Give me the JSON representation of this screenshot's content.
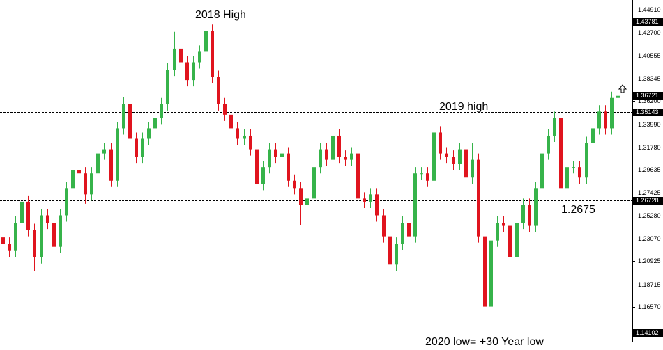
{
  "chart_data": {
    "type": "candlestick",
    "ylim": [
      1.1332,
      1.4584
    ],
    "yticks": [
      {
        "value": 1.4491,
        "label": "1.44910"
      },
      {
        "value": 1.427,
        "label": "1.42700"
      },
      1.40555,
      1.38345,
      {
        "value": 1.362,
        "label": "1.36200"
      },
      {
        "value": 1.3399,
        "label": "1.33990"
      },
      {
        "value": 1.3178,
        "label": "1.31780"
      },
      1.29635,
      1.27425,
      {
        "value": 1.2528,
        "label": "1.25280"
      },
      {
        "value": 1.2307,
        "label": "1.23070"
      },
      1.20925,
      1.18715,
      {
        "value": 1.1657,
        "label": "1.16570"
      }
    ],
    "levels": [
      1.43781,
      1.35143,
      1.26728,
      1.14102
    ],
    "last_price": 1.36721,
    "up_color": "#36b34a",
    "down_color": "#e0141e",
    "annotations": [
      "2018 High",
      "2019 high",
      "1.2675",
      "2020 low= +30 Year low"
    ],
    "open": [
      1.232,
      1.226,
      1.219,
      1.246,
      1.266,
      1.239,
      1.213,
      1.253,
      1.246,
      1.223,
      1.253,
      1.279,
      1.296,
      1.293,
      1.273,
      1.293,
      1.312,
      1.316,
      1.286,
      1.336,
      1.359,
      1.326,
      1.309,
      1.326,
      1.336,
      1.346,
      1.359,
      1.392,
      1.412,
      1.399,
      1.382,
      1.399,
      1.409,
      1.429,
      1.385,
      1.359,
      1.349,
      1.336,
      1.326,
      1.329,
      1.316,
      1.283,
      1.299,
      1.316,
      1.309,
      1.312,
      1.286,
      1.279,
      1.263,
      1.269,
      1.299,
      1.316,
      1.306,
      1.329,
      1.309,
      1.306,
      1.312,
      1.269,
      1.266,
      1.273,
      1.253,
      1.233,
      1.206,
      1.226,
      1.246,
      1.233,
      1.293,
      1.293,
      1.286,
      1.332,
      1.312,
      1.309,
      1.302,
      1.316,
      1.289,
      1.306,
      1.233,
      1.166,
      1.229,
      1.246,
      1.243,
      1.213,
      1.246,
      1.263,
      1.243,
      1.279,
      1.312,
      1.329,
      1.346,
      1.279,
      1.299,
      1.299,
      1.289,
      1.322,
      1.336,
      1.352,
      1.336,
      1.365
    ],
    "high": [
      1.238,
      1.232,
      1.252,
      1.274,
      1.272,
      1.245,
      1.259,
      1.259,
      1.252,
      1.259,
      1.285,
      1.302,
      1.302,
      1.299,
      1.299,
      1.318,
      1.322,
      1.322,
      1.342,
      1.366,
      1.365,
      1.332,
      1.332,
      1.342,
      1.352,
      1.365,
      1.398,
      1.428,
      1.418,
      1.405,
      1.405,
      1.415,
      1.43781,
      1.435,
      1.391,
      1.365,
      1.355,
      1.342,
      1.335,
      1.335,
      1.322,
      1.305,
      1.322,
      1.322,
      1.318,
      1.318,
      1.292,
      1.285,
      1.275,
      1.305,
      1.322,
      1.322,
      1.336,
      1.335,
      1.315,
      1.318,
      1.318,
      1.275,
      1.279,
      1.279,
      1.259,
      1.239,
      1.232,
      1.252,
      1.252,
      1.299,
      1.299,
      1.299,
      1.3514,
      1.338,
      1.318,
      1.315,
      1.322,
      1.322,
      1.322,
      1.312,
      1.239,
      1.235,
      1.252,
      1.252,
      1.249,
      1.252,
      1.269,
      1.269,
      1.285,
      1.318,
      1.335,
      1.352,
      1.352,
      1.305,
      1.305,
      1.305,
      1.328,
      1.342,
      1.358,
      1.358,
      1.371,
      1.373
    ],
    "low": [
      1.22,
      1.213,
      1.213,
      1.24,
      1.233,
      1.2,
      1.207,
      1.24,
      1.21,
      1.217,
      1.247,
      1.273,
      1.287,
      1.264,
      1.267,
      1.287,
      1.306,
      1.28,
      1.28,
      1.33,
      1.32,
      1.303,
      1.303,
      1.32,
      1.33,
      1.34,
      1.353,
      1.386,
      1.393,
      1.376,
      1.376,
      1.393,
      1.403,
      1.379,
      1.353,
      1.343,
      1.33,
      1.32,
      1.32,
      1.31,
      1.267,
      1.277,
      1.293,
      1.303,
      1.303,
      1.28,
      1.273,
      1.244,
      1.257,
      1.263,
      1.293,
      1.3,
      1.3,
      1.303,
      1.3,
      1.3,
      1.263,
      1.26,
      1.26,
      1.247,
      1.227,
      1.2,
      1.2,
      1.22,
      1.227,
      1.227,
      1.287,
      1.28,
      1.28,
      1.306,
      1.303,
      1.296,
      1.296,
      1.283,
      1.283,
      1.227,
      1.141,
      1.16,
      1.223,
      1.237,
      1.207,
      1.207,
      1.24,
      1.237,
      1.237,
      1.273,
      1.306,
      1.323,
      1.2675,
      1.273,
      1.293,
      1.283,
      1.283,
      1.316,
      1.33,
      1.33,
      1.33,
      1.359
    ],
    "close": [
      1.226,
      1.219,
      1.246,
      1.266,
      1.239,
      1.213,
      1.253,
      1.246,
      1.223,
      1.253,
      1.279,
      1.296,
      1.293,
      1.273,
      1.293,
      1.312,
      1.316,
      1.286,
      1.336,
      1.359,
      1.326,
      1.309,
      1.326,
      1.336,
      1.346,
      1.359,
      1.392,
      1.412,
      1.399,
      1.382,
      1.399,
      1.409,
      1.429,
      1.385,
      1.359,
      1.349,
      1.336,
      1.326,
      1.329,
      1.316,
      1.283,
      1.299,
      1.316,
      1.309,
      1.312,
      1.286,
      1.279,
      1.263,
      1.269,
      1.299,
      1.316,
      1.306,
      1.329,
      1.309,
      1.306,
      1.312,
      1.269,
      1.266,
      1.273,
      1.253,
      1.233,
      1.206,
      1.226,
      1.246,
      1.233,
      1.293,
      1.293,
      1.286,
      1.332,
      1.312,
      1.309,
      1.302,
      1.316,
      1.289,
      1.306,
      1.233,
      1.166,
      1.229,
      1.246,
      1.243,
      1.213,
      1.246,
      1.263,
      1.243,
      1.279,
      1.312,
      1.329,
      1.346,
      1.279,
      1.299,
      1.299,
      1.289,
      1.322,
      1.336,
      1.352,
      1.336,
      1.365,
      1.367
    ]
  }
}
